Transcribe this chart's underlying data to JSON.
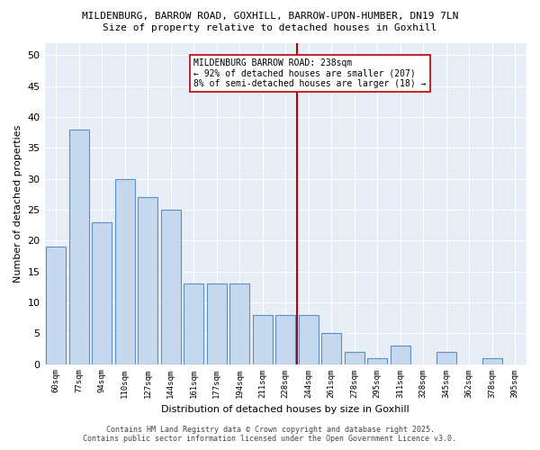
{
  "title_line1": "MILDENBURG, BARROW ROAD, GOXHILL, BARROW-UPON-HUMBER, DN19 7LN",
  "title_line2": "Size of property relative to detached houses in Goxhill",
  "xlabel": "Distribution of detached houses by size in Goxhill",
  "ylabel": "Number of detached properties",
  "categories": [
    "60sqm",
    "77sqm",
    "94sqm",
    "110sqm",
    "127sqm",
    "144sqm",
    "161sqm",
    "177sqm",
    "194sqm",
    "211sqm",
    "228sqm",
    "244sqm",
    "261sqm",
    "278sqm",
    "295sqm",
    "311sqm",
    "328sqm",
    "345sqm",
    "362sqm",
    "378sqm",
    "395sqm"
  ],
  "values": [
    19,
    38,
    23,
    30,
    27,
    25,
    13,
    13,
    13,
    8,
    8,
    8,
    5,
    2,
    1,
    3,
    0,
    2,
    0,
    1,
    0
  ],
  "bar_color": "#c5d8ee",
  "bar_edgecolor": "#5b8fc7",
  "bar_linewidth": 0.8,
  "vline_index": 11,
  "vline_color": "#bb0000",
  "annotation_text": "MILDENBURG BARROW ROAD: 238sqm\n← 92% of detached houses are smaller (207)\n8% of semi-detached houses are larger (18) →",
  "ylim": [
    0,
    52
  ],
  "yticks": [
    0,
    5,
    10,
    15,
    20,
    25,
    30,
    35,
    40,
    45,
    50
  ],
  "fig_bg_color": "#ffffff",
  "plot_bg_color": "#e8eef6",
  "grid_color": "#ffffff",
  "footer_line1": "Contains HM Land Registry data © Crown copyright and database right 2025.",
  "footer_line2": "Contains public sector information licensed under the Open Government Licence v3.0.",
  "figsize": [
    6.0,
    5.0
  ],
  "dpi": 100
}
